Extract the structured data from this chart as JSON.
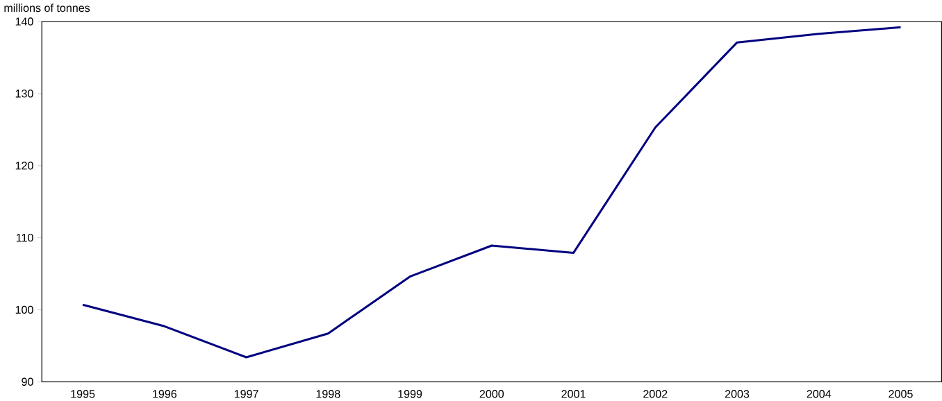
{
  "chart_data": {
    "type": "line",
    "ylabel": "millions of tonnes",
    "categories": [
      "1995",
      "1996",
      "1997",
      "1998",
      "1999",
      "2000",
      "2001",
      "2002",
      "2003",
      "2004",
      "2005"
    ],
    "series": [
      {
        "color": "#000080",
        "values": [
          100.7,
          97.7,
          93.4,
          96.7,
          104.6,
          108.9,
          107.9,
          125.3,
          137.1,
          138.3,
          139.2
        ]
      }
    ],
    "ylim": [
      90,
      140
    ],
    "yticks": [
      90,
      100,
      110,
      120,
      130,
      140
    ],
    "grid": false,
    "marker": "none",
    "line_style": "solid"
  }
}
